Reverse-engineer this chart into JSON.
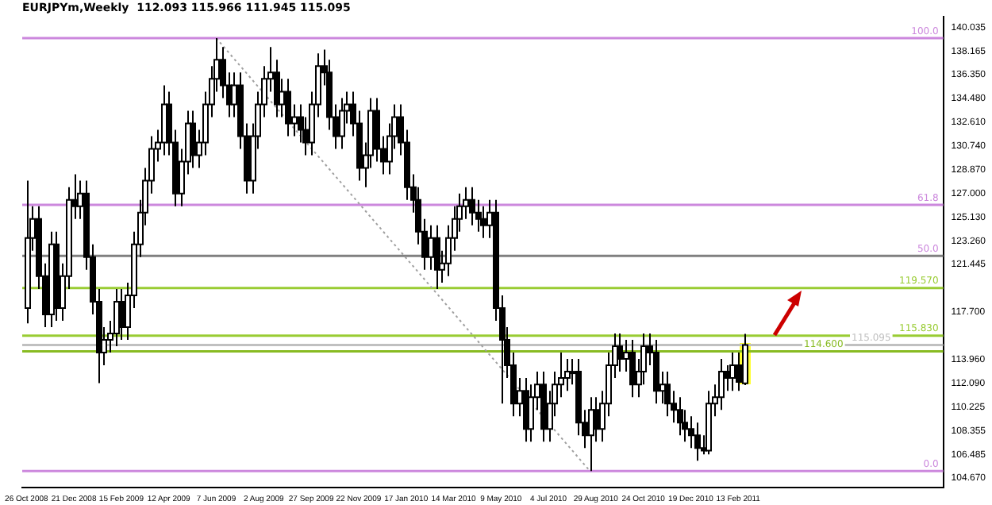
{
  "chart_data": {
    "type": "candlestick",
    "title": "EURJPYm,Weekly  112.093 115.966 111.945 115.095",
    "x": [
      "2008-10-26",
      "2008-11-02",
      "2008-11-09",
      "2008-11-16",
      "2008-11-23",
      "2008-11-30",
      "2008-12-07",
      "2008-12-14",
      "2008-12-21",
      "2008-12-28",
      "2009-01-04",
      "2009-01-11",
      "2009-01-18",
      "2009-01-25",
      "2009-02-01",
      "2009-02-08",
      "2009-02-15",
      "2009-02-22",
      "2009-03-01",
      "2009-03-08",
      "2009-03-15",
      "2009-03-22",
      "2009-03-29",
      "2009-04-05",
      "2009-04-12",
      "2009-04-19",
      "2009-04-26",
      "2009-05-03",
      "2009-05-10",
      "2009-05-17",
      "2009-05-24",
      "2009-05-31",
      "2009-06-07",
      "2009-06-14",
      "2009-06-21",
      "2009-06-28",
      "2009-07-05",
      "2009-07-12",
      "2009-07-19",
      "2009-07-26",
      "2009-08-02",
      "2009-08-09",
      "2009-08-16",
      "2009-08-23",
      "2009-08-30",
      "2009-09-06",
      "2009-09-13",
      "2009-09-20",
      "2009-09-27",
      "2009-10-04",
      "2009-10-11",
      "2009-10-18",
      "2009-10-25",
      "2009-11-01",
      "2009-11-08",
      "2009-11-15",
      "2009-11-22",
      "2009-11-29",
      "2009-12-06",
      "2009-12-13",
      "2009-12-20",
      "2009-12-27",
      "2010-01-03",
      "2010-01-10",
      "2010-01-17",
      "2010-01-24",
      "2010-01-31",
      "2010-02-07",
      "2010-02-14",
      "2010-02-21",
      "2010-02-28",
      "2010-03-07",
      "2010-03-14",
      "2010-03-21",
      "2010-03-28",
      "2010-04-04",
      "2010-04-11",
      "2010-04-18",
      "2010-04-25",
      "2010-05-02",
      "2010-05-09",
      "2010-05-16",
      "2010-05-23",
      "2010-05-30",
      "2010-06-06",
      "2010-06-13",
      "2010-06-20",
      "2010-06-27",
      "2010-07-04",
      "2010-07-11",
      "2010-07-18",
      "2010-07-25",
      "2010-08-01",
      "2010-08-08",
      "2010-08-15",
      "2010-08-22",
      "2010-08-29",
      "2010-09-05",
      "2010-09-12",
      "2010-09-19",
      "2010-09-26",
      "2010-10-03",
      "2010-10-10",
      "2010-10-17",
      "2010-10-24",
      "2010-10-31",
      "2010-11-07",
      "2010-11-14",
      "2010-11-21",
      "2010-11-28",
      "2010-12-05",
      "2010-12-12",
      "2010-12-19",
      "2010-12-26",
      "2011-01-02",
      "2011-01-09",
      "2011-01-16",
      "2011-01-23",
      "2011-01-30",
      "2011-02-06",
      "2011-02-13",
      "2011-02-20"
    ],
    "ohlc": [
      [
        118.0,
        128.0,
        116.8,
        123.5
      ],
      [
        123.5,
        126.0,
        122.5,
        125.0
      ],
      [
        125.0,
        126.0,
        119.5,
        120.5
      ],
      [
        120.5,
        121.5,
        116.5,
        117.5
      ],
      [
        117.5,
        124.0,
        116.5,
        123.0
      ],
      [
        123.0,
        124.0,
        117.0,
        118.0
      ],
      [
        118.0,
        121.5,
        117.0,
        120.5
      ],
      [
        120.5,
        127.5,
        119.5,
        126.5
      ],
      [
        126.5,
        128.5,
        125.0,
        126.0
      ],
      [
        126.0,
        128.0,
        125.0,
        127.0
      ],
      [
        127.0,
        128.0,
        121.0,
        122.0
      ],
      [
        122.0,
        123.0,
        117.5,
        118.5
      ],
      [
        118.5,
        119.5,
        112.1,
        114.5
      ],
      [
        114.5,
        116.5,
        113.5,
        115.5
      ],
      [
        115.5,
        117.0,
        114.5,
        116.0
      ],
      [
        116.0,
        119.5,
        115.0,
        118.5
      ],
      [
        118.5,
        119.5,
        115.5,
        116.5
      ],
      [
        116.5,
        120.0,
        115.5,
        119.0
      ],
      [
        119.0,
        124.0,
        118.0,
        123.0
      ],
      [
        123.0,
        126.5,
        122.0,
        125.5
      ],
      [
        125.5,
        129.0,
        124.5,
        128.0
      ],
      [
        128.0,
        131.5,
        127.0,
        130.5
      ],
      [
        130.5,
        132.0,
        129.5,
        131.0
      ],
      [
        131.0,
        135.5,
        130.0,
        134.0
      ],
      [
        134.0,
        135.0,
        130.0,
        131.0
      ],
      [
        131.0,
        132.0,
        126.0,
        127.0
      ],
      [
        127.0,
        130.5,
        126.0,
        129.5
      ],
      [
        129.5,
        133.5,
        128.5,
        132.5
      ],
      [
        132.5,
        133.5,
        129.0,
        130.0
      ],
      [
        130.0,
        132.0,
        129.0,
        131.0
      ],
      [
        131.0,
        135.0,
        130.0,
        134.0
      ],
      [
        134.0,
        137.0,
        133.0,
        136.0
      ],
      [
        136.0,
        139.2,
        135.0,
        137.5
      ],
      [
        137.5,
        138.5,
        134.5,
        135.5
      ],
      [
        135.5,
        136.5,
        133.0,
        134.0
      ],
      [
        134.0,
        136.5,
        133.0,
        135.5
      ],
      [
        135.5,
        136.5,
        130.5,
        131.5
      ],
      [
        131.5,
        132.5,
        127.0,
        128.0
      ],
      [
        128.0,
        132.5,
        127.0,
        131.5
      ],
      [
        131.5,
        135.0,
        130.5,
        134.0
      ],
      [
        134.0,
        137.0,
        133.0,
        136.0
      ],
      [
        136.0,
        138.5,
        135.0,
        136.5
      ],
      [
        136.5,
        137.5,
        133.0,
        134.0
      ],
      [
        134.0,
        136.0,
        133.0,
        135.0
      ],
      [
        135.0,
        136.0,
        131.5,
        132.5
      ],
      [
        132.5,
        134.0,
        131.5,
        133.0
      ],
      [
        133.0,
        134.0,
        131.0,
        132.0
      ],
      [
        132.0,
        133.0,
        130.0,
        131.0
      ],
      [
        131.0,
        135.0,
        130.0,
        134.0
      ],
      [
        134.0,
        138.0,
        133.0,
        137.0
      ],
      [
        137.0,
        138.3,
        135.5,
        136.5
      ],
      [
        136.5,
        137.5,
        132.0,
        133.0
      ],
      [
        133.0,
        134.0,
        130.5,
        131.5
      ],
      [
        131.5,
        134.5,
        130.5,
        133.5
      ],
      [
        133.5,
        135.0,
        132.5,
        134.0
      ],
      [
        134.0,
        135.0,
        131.5,
        132.5
      ],
      [
        132.5,
        133.5,
        128.0,
        129.0
      ],
      [
        129.0,
        131.0,
        127.5,
        130.0
      ],
      [
        130.0,
        134.5,
        129.0,
        133.5
      ],
      [
        133.5,
        134.5,
        129.5,
        130.5
      ],
      [
        130.5,
        131.5,
        128.5,
        129.5
      ],
      [
        129.5,
        132.5,
        128.5,
        131.5
      ],
      [
        131.5,
        134.0,
        130.5,
        133.0
      ],
      [
        133.0,
        134.0,
        130.0,
        131.0
      ],
      [
        131.0,
        132.0,
        126.5,
        127.5
      ],
      [
        127.5,
        128.5,
        125.5,
        126.5
      ],
      [
        126.5,
        127.5,
        123.0,
        124.0
      ],
      [
        124.0,
        125.0,
        121.0,
        122.0
      ],
      [
        122.0,
        124.5,
        121.0,
        123.5
      ],
      [
        123.5,
        124.5,
        119.5,
        121.0
      ],
      [
        121.0,
        122.5,
        120.0,
        121.5
      ],
      [
        121.5,
        124.5,
        120.5,
        123.5
      ],
      [
        123.5,
        126.0,
        122.5,
        125.0
      ],
      [
        125.0,
        127.0,
        124.0,
        126.0
      ],
      [
        126.0,
        127.5,
        125.0,
        126.5
      ],
      [
        126.5,
        127.5,
        124.5,
        125.5
      ],
      [
        125.5,
        126.5,
        124.0,
        125.0
      ],
      [
        125.0,
        126.0,
        123.5,
        124.5
      ],
      [
        124.5,
        126.5,
        123.5,
        125.5
      ],
      [
        125.5,
        126.5,
        117.0,
        118.0
      ],
      [
        118.0,
        119.0,
        110.5,
        115.5
      ],
      [
        115.5,
        116.5,
        112.5,
        113.5
      ],
      [
        113.5,
        114.5,
        109.5,
        110.5
      ],
      [
        110.5,
        112.5,
        109.5,
        111.5
      ],
      [
        111.5,
        112.5,
        107.5,
        108.5
      ],
      [
        108.5,
        112.0,
        107.5,
        111.0
      ],
      [
        111.0,
        113.0,
        110.0,
        112.0
      ],
      [
        112.0,
        113.0,
        107.5,
        108.5
      ],
      [
        108.5,
        111.5,
        107.5,
        110.5
      ],
      [
        110.5,
        113.0,
        109.5,
        112.0
      ],
      [
        112.0,
        114.5,
        111.0,
        112.5
      ],
      [
        112.5,
        114.0,
        111.5,
        113.0
      ],
      [
        113.0,
        114.0,
        112.0,
        113.0
      ],
      [
        113.0,
        114.0,
        108.0,
        109.0
      ],
      [
        109.0,
        110.0,
        107.0,
        108.0
      ],
      [
        108.0,
        111.0,
        105.2,
        110.0
      ],
      [
        110.0,
        111.0,
        107.5,
        108.5
      ],
      [
        108.5,
        111.5,
        107.5,
        110.5
      ],
      [
        110.5,
        114.5,
        109.5,
        113.5
      ],
      [
        113.5,
        116.0,
        112.5,
        115.0
      ],
      [
        115.0,
        116.0,
        113.0,
        114.0
      ],
      [
        114.0,
        115.5,
        113.0,
        114.5
      ],
      [
        114.5,
        115.5,
        111.0,
        112.0
      ],
      [
        112.0,
        114.0,
        111.0,
        113.0
      ],
      [
        113.0,
        116.0,
        112.0,
        115.0
      ],
      [
        115.0,
        116.0,
        113.5,
        114.5
      ],
      [
        114.5,
        115.5,
        110.5,
        111.5
      ],
      [
        111.5,
        113.0,
        110.5,
        112.0
      ],
      [
        112.0,
        113.0,
        109.5,
        110.5
      ],
      [
        110.5,
        111.5,
        109.0,
        110.0
      ],
      [
        110.0,
        111.0,
        108.0,
        109.0
      ],
      [
        109.0,
        110.0,
        107.5,
        108.5
      ],
      [
        108.5,
        109.5,
        107.0,
        108.0
      ],
      [
        108.0,
        109.0,
        106.0,
        107.0
      ],
      [
        107.0,
        108.0,
        106.5,
        106.8
      ],
      [
        106.8,
        111.5,
        106.5,
        110.5
      ],
      [
        110.5,
        112.0,
        109.5,
        111.0
      ],
      [
        111.0,
        114.0,
        110.0,
        113.0
      ],
      [
        113.0,
        113.5,
        111.5,
        112.5
      ],
      [
        112.5,
        114.5,
        111.5,
        113.5
      ],
      [
        113.5,
        114.5,
        111.5,
        112.2
      ],
      [
        112.093,
        115.966,
        111.945,
        115.095
      ]
    ],
    "series": [
      {
        "type": "line",
        "x": [
          "2009-06-07",
          "2010-08-22"
        ],
        "values": [
          139.2,
          105.2
        ],
        "color": "#a0a0a0",
        "line_style": "dotted"
      }
    ],
    "xlim": [
      "2008-10-21",
      "2011-10-13"
    ],
    "xticks": [
      {
        "value": "2008-10-26",
        "label": "26 Oct 2008"
      },
      {
        "value": "2008-12-21",
        "label": "21 Dec 2008"
      },
      {
        "value": "2009-02-15",
        "label": "15 Feb 2009"
      },
      {
        "value": "2009-04-12",
        "label": "12 Apr 2009"
      },
      {
        "value": "2009-06-07",
        "label": "7 Jun 2009"
      },
      {
        "value": "2009-08-02",
        "label": "2 Aug 2009"
      },
      {
        "value": "2009-09-27",
        "label": "27 Sep 2009"
      },
      {
        "value": "2009-11-22",
        "label": "22 Nov 2009"
      },
      {
        "value": "2010-01-17",
        "label": "17 Jan 2010"
      },
      {
        "value": "2010-03-14",
        "label": "14 Mar 2010"
      },
      {
        "value": "2010-05-09",
        "label": "9 May 2010"
      },
      {
        "value": "2010-07-04",
        "label": "4 Jul 2010"
      },
      {
        "value": "2010-08-29",
        "label": "29 Aug 2010"
      },
      {
        "value": "2010-10-24",
        "label": "24 Oct 2010"
      },
      {
        "value": "2010-12-19",
        "label": "19 Dec 2010"
      },
      {
        "value": "2011-02-13",
        "label": "13 Feb 2011"
      }
    ],
    "ylim": [
      103.9,
      140.9
    ],
    "yticks": [
      {
        "value": 140.035,
        "label": "140.035"
      },
      {
        "value": 138.165,
        "label": "138.165"
      },
      {
        "value": 136.35,
        "label": "136.350"
      },
      {
        "value": 134.48,
        "label": "134.480"
      },
      {
        "value": 132.61,
        "label": "132.610"
      },
      {
        "value": 130.74,
        "label": "130.740"
      },
      {
        "value": 128.87,
        "label": "128.870"
      },
      {
        "value": 127,
        "label": "127.000"
      },
      {
        "value": 125.13,
        "label": "125.130"
      },
      {
        "value": 123.26,
        "label": "123.260"
      },
      {
        "value": 121.445,
        "label": "121.445"
      },
      {
        "value": 117.7,
        "label": "117.700"
      },
      {
        "value": 113.96,
        "label": "113.960"
      },
      {
        "value": 112.09,
        "label": "112.090"
      },
      {
        "value": 110.225,
        "label": "110.225"
      },
      {
        "value": 108.355,
        "label": "108.355"
      },
      {
        "value": 106.485,
        "label": "106.485"
      },
      {
        "value": 104.67,
        "label": "104.670"
      }
    ],
    "annotations": [
      {
        "text": "100.0",
        "y": 139.2
      },
      {
        "text": "61.8",
        "y": 126.1
      },
      {
        "text": "50.0",
        "y": 122.1
      },
      {
        "text": "0.0",
        "y": 105.2
      }
    ],
    "ref_lines": [
      {
        "axis": "y",
        "value": 139.2,
        "color": "#cc88dd"
      },
      {
        "axis": "y",
        "value": 126.1,
        "color": "#cc88dd"
      },
      {
        "axis": "y",
        "value": 122.1,
        "color": "#808080"
      },
      {
        "axis": "y",
        "value": 105.2,
        "color": "#cc88dd"
      },
      {
        "axis": "y",
        "value": 119.57,
        "label": "119.570",
        "color": "#99cc33"
      },
      {
        "axis": "y",
        "value": 115.83,
        "label": "115.830",
        "color": "#99cc33"
      },
      {
        "axis": "y",
        "value": 115.095,
        "label": "115.095",
        "color": "#c0c0c0"
      },
      {
        "axis": "y",
        "value": 114.6,
        "label": "114.600",
        "color": "#88bb22"
      }
    ]
  }
}
